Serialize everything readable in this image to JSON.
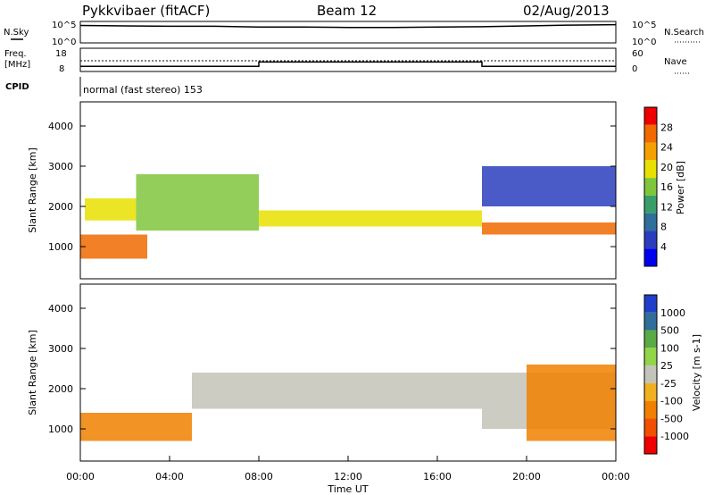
{
  "header": {
    "station": "Pykkvibaer (fitACF)",
    "beam": "Beam 12",
    "date": "02/Aug/2013"
  },
  "side_labels": {
    "nsky": "N.Sky",
    "freq_line1": "Freq.",
    "freq_line2": "[MHz]",
    "cpid": "CPID",
    "nsearch": "N.Search",
    "nave": "Nave"
  },
  "cpid_text": "normal (fast stereo) 153",
  "colors": {
    "power_scale": [
      "#0000ee",
      "#2a3dbd",
      "#2f6e9a",
      "#3a9e6a",
      "#7fc63c",
      "#e8e000",
      "#f4a000",
      "#f06a00",
      "#ee0000"
    ],
    "velocity_scale": [
      "#1f3fc8",
      "#2f6e9a",
      "#5aaa46",
      "#92d44a",
      "#c3c3b9",
      "#f0b020",
      "#f08000",
      "#f05000",
      "#ee0000"
    ]
  },
  "chart_data": [
    {
      "type": "line",
      "panel": "noise",
      "x_range": [
        "00:00",
        "24:00"
      ],
      "yticks": [
        "10^0",
        "10^5"
      ],
      "right_yticks": [
        "10^0",
        "10^5"
      ],
      "series": [
        {
          "x": [
            0,
            2,
            4,
            6,
            8,
            10,
            12,
            14,
            16,
            18,
            20,
            22,
            24
          ],
          "values": [
            4.2,
            4.1,
            4.0,
            4.0,
            3.8,
            3.8,
            3.7,
            3.7,
            3.8,
            3.9,
            4.1,
            4.3,
            4.4
          ]
        }
      ]
    },
    {
      "type": "line",
      "panel": "frequency",
      "yticks": [
        "8",
        "18"
      ],
      "right_yticks": [
        "0",
        "60"
      ],
      "series": [
        {
          "x": [
            0,
            8,
            8,
            18,
            18,
            24
          ],
          "values": [
            10,
            10,
            12,
            12,
            10,
            10
          ]
        }
      ]
    },
    {
      "type": "heatmap",
      "panel": "power",
      "xlabel": "",
      "ylabel": "Slant Range [km]",
      "ylim": [
        200,
        4600
      ],
      "xticks": [
        "00:00",
        "04:00",
        "08:00",
        "12:00",
        "16:00",
        "20:00",
        "00:00"
      ],
      "yticks": [
        1000,
        2000,
        3000,
        4000
      ],
      "colorbar": {
        "label": "Power [dB]",
        "ticks": [
          "4",
          "8",
          "12",
          "16",
          "20",
          "24",
          "28"
        ]
      },
      "bands": [
        {
          "t0": 0.2,
          "t1": 2.5,
          "r0": 1650,
          "r1": 2200,
          "level": 5
        },
        {
          "t0": 0.0,
          "t1": 3.0,
          "r0": 700,
          "r1": 1300,
          "level": 7
        },
        {
          "t0": 2.5,
          "t1": 8.0,
          "r0": 1400,
          "r1": 2800,
          "level": 4
        },
        {
          "t0": 8.0,
          "t1": 18.0,
          "r0": 1500,
          "r1": 1900,
          "level": 5
        },
        {
          "t0": 18.0,
          "t1": 24.0,
          "r0": 1300,
          "r1": 1600,
          "level": 7
        },
        {
          "t0": 18.0,
          "t1": 24.0,
          "r0": 2000,
          "r1": 3000,
          "level": 1
        }
      ]
    },
    {
      "type": "heatmap",
      "panel": "velocity",
      "xlabel": "Time UT",
      "ylabel": "Slant Range [km]",
      "ylim": [
        200,
        4600
      ],
      "xticks": [
        "00:00",
        "04:00",
        "08:00",
        "12:00",
        "16:00",
        "20:00",
        "00:00"
      ],
      "yticks": [
        1000,
        2000,
        3000,
        4000
      ],
      "colorbar": {
        "label": "Velocity [m s-1]",
        "ticks": [
          "1000",
          "500",
          "100",
          "25",
          "-25",
          "-100",
          "-500",
          "-1000"
        ]
      },
      "bands": [
        {
          "t0": 0.0,
          "t1": 5.0,
          "r0": 700,
          "r1": 1400,
          "level": 6
        },
        {
          "t0": 5.0,
          "t1": 18.0,
          "r0": 1500,
          "r1": 2400,
          "level": 4
        },
        {
          "t0": 18.0,
          "t1": 24.0,
          "r0": 1000,
          "r1": 2400,
          "level": 4
        },
        {
          "t0": 20.0,
          "t1": 24.0,
          "r0": 700,
          "r1": 2600,
          "level": 6
        }
      ]
    }
  ]
}
